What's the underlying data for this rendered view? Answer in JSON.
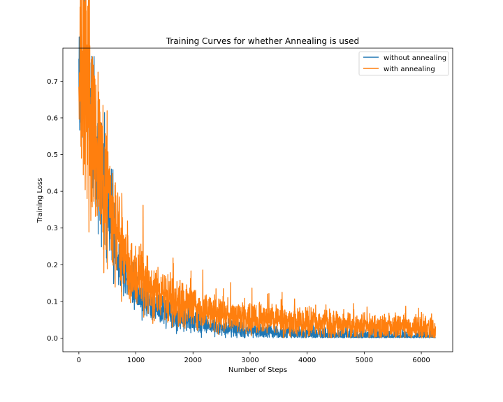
{
  "chart_data": {
    "type": "line",
    "title": "Training Curves for whether Annealing is used",
    "xlabel": "Number of Steps",
    "ylabel": "Training Loss",
    "xlim": [
      -280,
      6550
    ],
    "ylim": [
      -0.037,
      0.79
    ],
    "xticks": [
      0,
      1000,
      2000,
      3000,
      4000,
      5000,
      6000
    ],
    "yticks": [
      0.0,
      0.1,
      0.2,
      0.3,
      0.4,
      0.5,
      0.6,
      0.7
    ],
    "grid": false,
    "legend_position": "upper right",
    "series": [
      {
        "name": "without annealing",
        "color": "#1f77b4",
        "x": [
          0,
          100,
          200,
          300,
          400,
          500,
          600,
          700,
          800,
          900,
          1000,
          1200,
          1400,
          1600,
          1800,
          2000,
          2200,
          2400,
          2600,
          2800,
          3000,
          3500,
          4000,
          4500,
          5000,
          5500,
          6000,
          6250
        ],
        "y": [
          0.7,
          0.68,
          0.62,
          0.52,
          0.43,
          0.35,
          0.28,
          0.22,
          0.18,
          0.15,
          0.13,
          0.1,
          0.08,
          0.065,
          0.055,
          0.045,
          0.038,
          0.032,
          0.027,
          0.023,
          0.02,
          0.014,
          0.01,
          0.007,
          0.005,
          0.004,
          0.003,
          0.003
        ]
      },
      {
        "name": "with annealing",
        "color": "#ff7f0e",
        "x": [
          0,
          100,
          200,
          300,
          400,
          500,
          600,
          700,
          800,
          900,
          1000,
          1200,
          1400,
          1600,
          1800,
          2000,
          2200,
          2400,
          2600,
          2800,
          3000,
          3500,
          4000,
          4500,
          5000,
          5500,
          6000,
          6250
        ],
        "y": [
          0.71,
          0.69,
          0.63,
          0.54,
          0.45,
          0.38,
          0.31,
          0.26,
          0.22,
          0.19,
          0.17,
          0.14,
          0.12,
          0.105,
          0.095,
          0.085,
          0.077,
          0.07,
          0.065,
          0.06,
          0.055,
          0.048,
          0.042,
          0.038,
          0.034,
          0.031,
          0.029,
          0.028
        ]
      }
    ]
  }
}
